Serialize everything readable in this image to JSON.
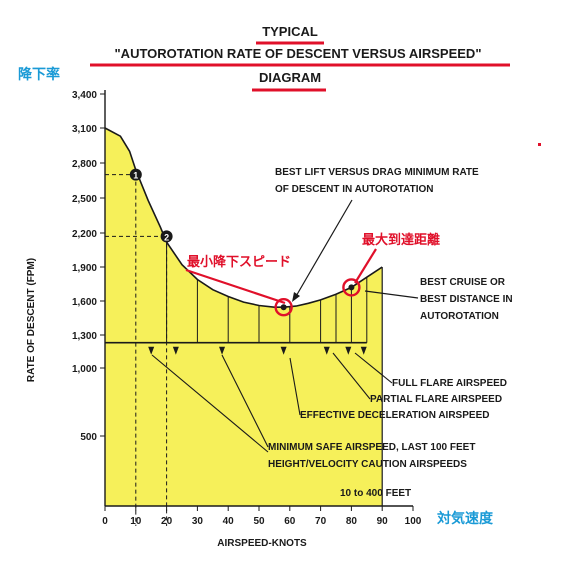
{
  "title": {
    "line1": "TYPICAL",
    "line2": "\"AUTOROTATION RATE OF DESCENT VERSUS AIRSPEED\"",
    "line3": "DIAGRAM"
  },
  "jp_labels": {
    "y_axis_jp": "降下率",
    "x_axis_jp": "対気速度",
    "min_descent_jp": "最小降下スピード",
    "max_range_jp": "最大到達距離"
  },
  "annotations": {
    "best_lift": [
      "BEST LIFT VERSUS DRAG MINIMUM RATE",
      "OF DESCENT IN AUTOROTATION"
    ],
    "best_cruise": [
      "BEST CRUISE OR",
      "BEST DISTANCE IN",
      "AUTOROTATION"
    ],
    "full_flare": "FULL FLARE AIRSPEED",
    "partial_flare": "PARTIAL FLARE AIRSPEED",
    "effective_decel": "EFFECTIVE DECELERATION AIRSPEED",
    "min_safe": [
      "MINIMUM SAFE AIRSPEED, LAST 100 FEET",
      "HEIGHT/VELOCITY CAUTION AIRSPEEDS"
    ],
    "feet": "10 to 400 FEET",
    "marker1": "1",
    "marker2": "2"
  },
  "colors": {
    "fill": "#f6f05a",
    "line": "#1a1a1a",
    "red": "#e0102a",
    "blue": "#1a9ad6"
  },
  "chart_data": {
    "type": "area",
    "xlabel": "AIRSPEED-KNOTS",
    "ylabel": "RATE OF DESCENT (FPM)",
    "xlim": [
      0,
      100
    ],
    "ylim": [
      0,
      3400
    ],
    "x_ticks": [
      0,
      10,
      20,
      30,
      40,
      50,
      60,
      70,
      80,
      90,
      100
    ],
    "y_ticks": [
      500,
      1000,
      1300,
      1600,
      1900,
      2200,
      2500,
      2800,
      3100,
      3400
    ],
    "y_tick_labels": [
      "500",
      "1,000",
      "1,300",
      "1,600",
      "1,900",
      "2,200",
      "2,500",
      "2,800",
      "3,100",
      "3,400"
    ],
    "series": [
      {
        "x": [
          0,
          5,
          8,
          10,
          14,
          18,
          20,
          25,
          30,
          35,
          40,
          45,
          50,
          55,
          58,
          62,
          66,
          70,
          75,
          80,
          85,
          90
        ],
        "y": [
          3100,
          3030,
          2900,
          2740,
          2480,
          2250,
          2120,
          1920,
          1790,
          1700,
          1640,
          1590,
          1560,
          1545,
          1545,
          1555,
          1580,
          1610,
          1660,
          1720,
          1810,
          1900
        ]
      }
    ],
    "baseline_rod": 1230,
    "floor_rod": 500,
    "band_lines_x": [
      20,
      30,
      40,
      50,
      60,
      70,
      75,
      80,
      85
    ],
    "threshold_ticks_x": [
      15,
      23,
      38,
      58,
      72,
      79,
      84
    ],
    "markers": [
      {
        "x": 10,
        "y": 2700,
        "label": "1"
      },
      {
        "x": 20,
        "y": 2170,
        "label": "2"
      }
    ],
    "highlight_points": [
      {
        "x": 58,
        "y": 1545,
        "label": "最小降下スピード"
      },
      {
        "x": 80,
        "y": 1720,
        "label": "最大到達距離"
      }
    ]
  }
}
